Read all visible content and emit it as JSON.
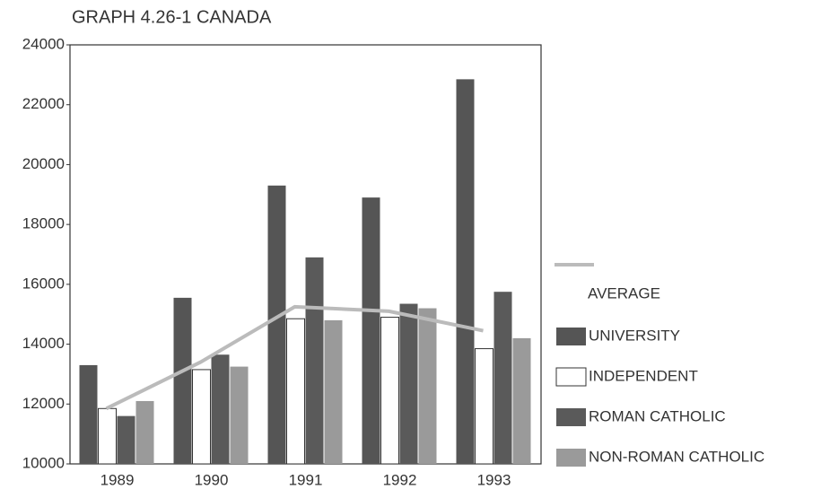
{
  "chart_data": {
    "type": "bar",
    "title": "GRAPH 4.26-1 CANADA",
    "categories": [
      "1989",
      "1990",
      "1991",
      "1992",
      "1993"
    ],
    "series": [
      {
        "name": "UNIVERSITY",
        "color": "#555555",
        "values": [
          13300,
          15550,
          19300,
          18900,
          22850
        ]
      },
      {
        "name": "INDEPENDENT",
        "color": "#ffffff",
        "values": [
          11850,
          13150,
          14850,
          14900,
          13850
        ]
      },
      {
        "name": "ROMAN CATHOLIC",
        "color": "#5a5a5a",
        "values": [
          11600,
          13650,
          16900,
          15350,
          15750
        ]
      },
      {
        "name": "NON-ROMAN CATHOLIC",
        "color": "#9a9a9a",
        "values": [
          12100,
          13250,
          14800,
          15200,
          14200
        ]
      },
      {
        "name": "AVERAGE",
        "type": "line",
        "color": "#bbbbbb",
        "values": [
          11850,
          13400,
          15250,
          15100,
          14450
        ]
      }
    ],
    "ylim": [
      10000,
      24000
    ],
    "yticks": [
      10000,
      12000,
      14000,
      16000,
      18000,
      20000,
      22000,
      24000
    ]
  }
}
